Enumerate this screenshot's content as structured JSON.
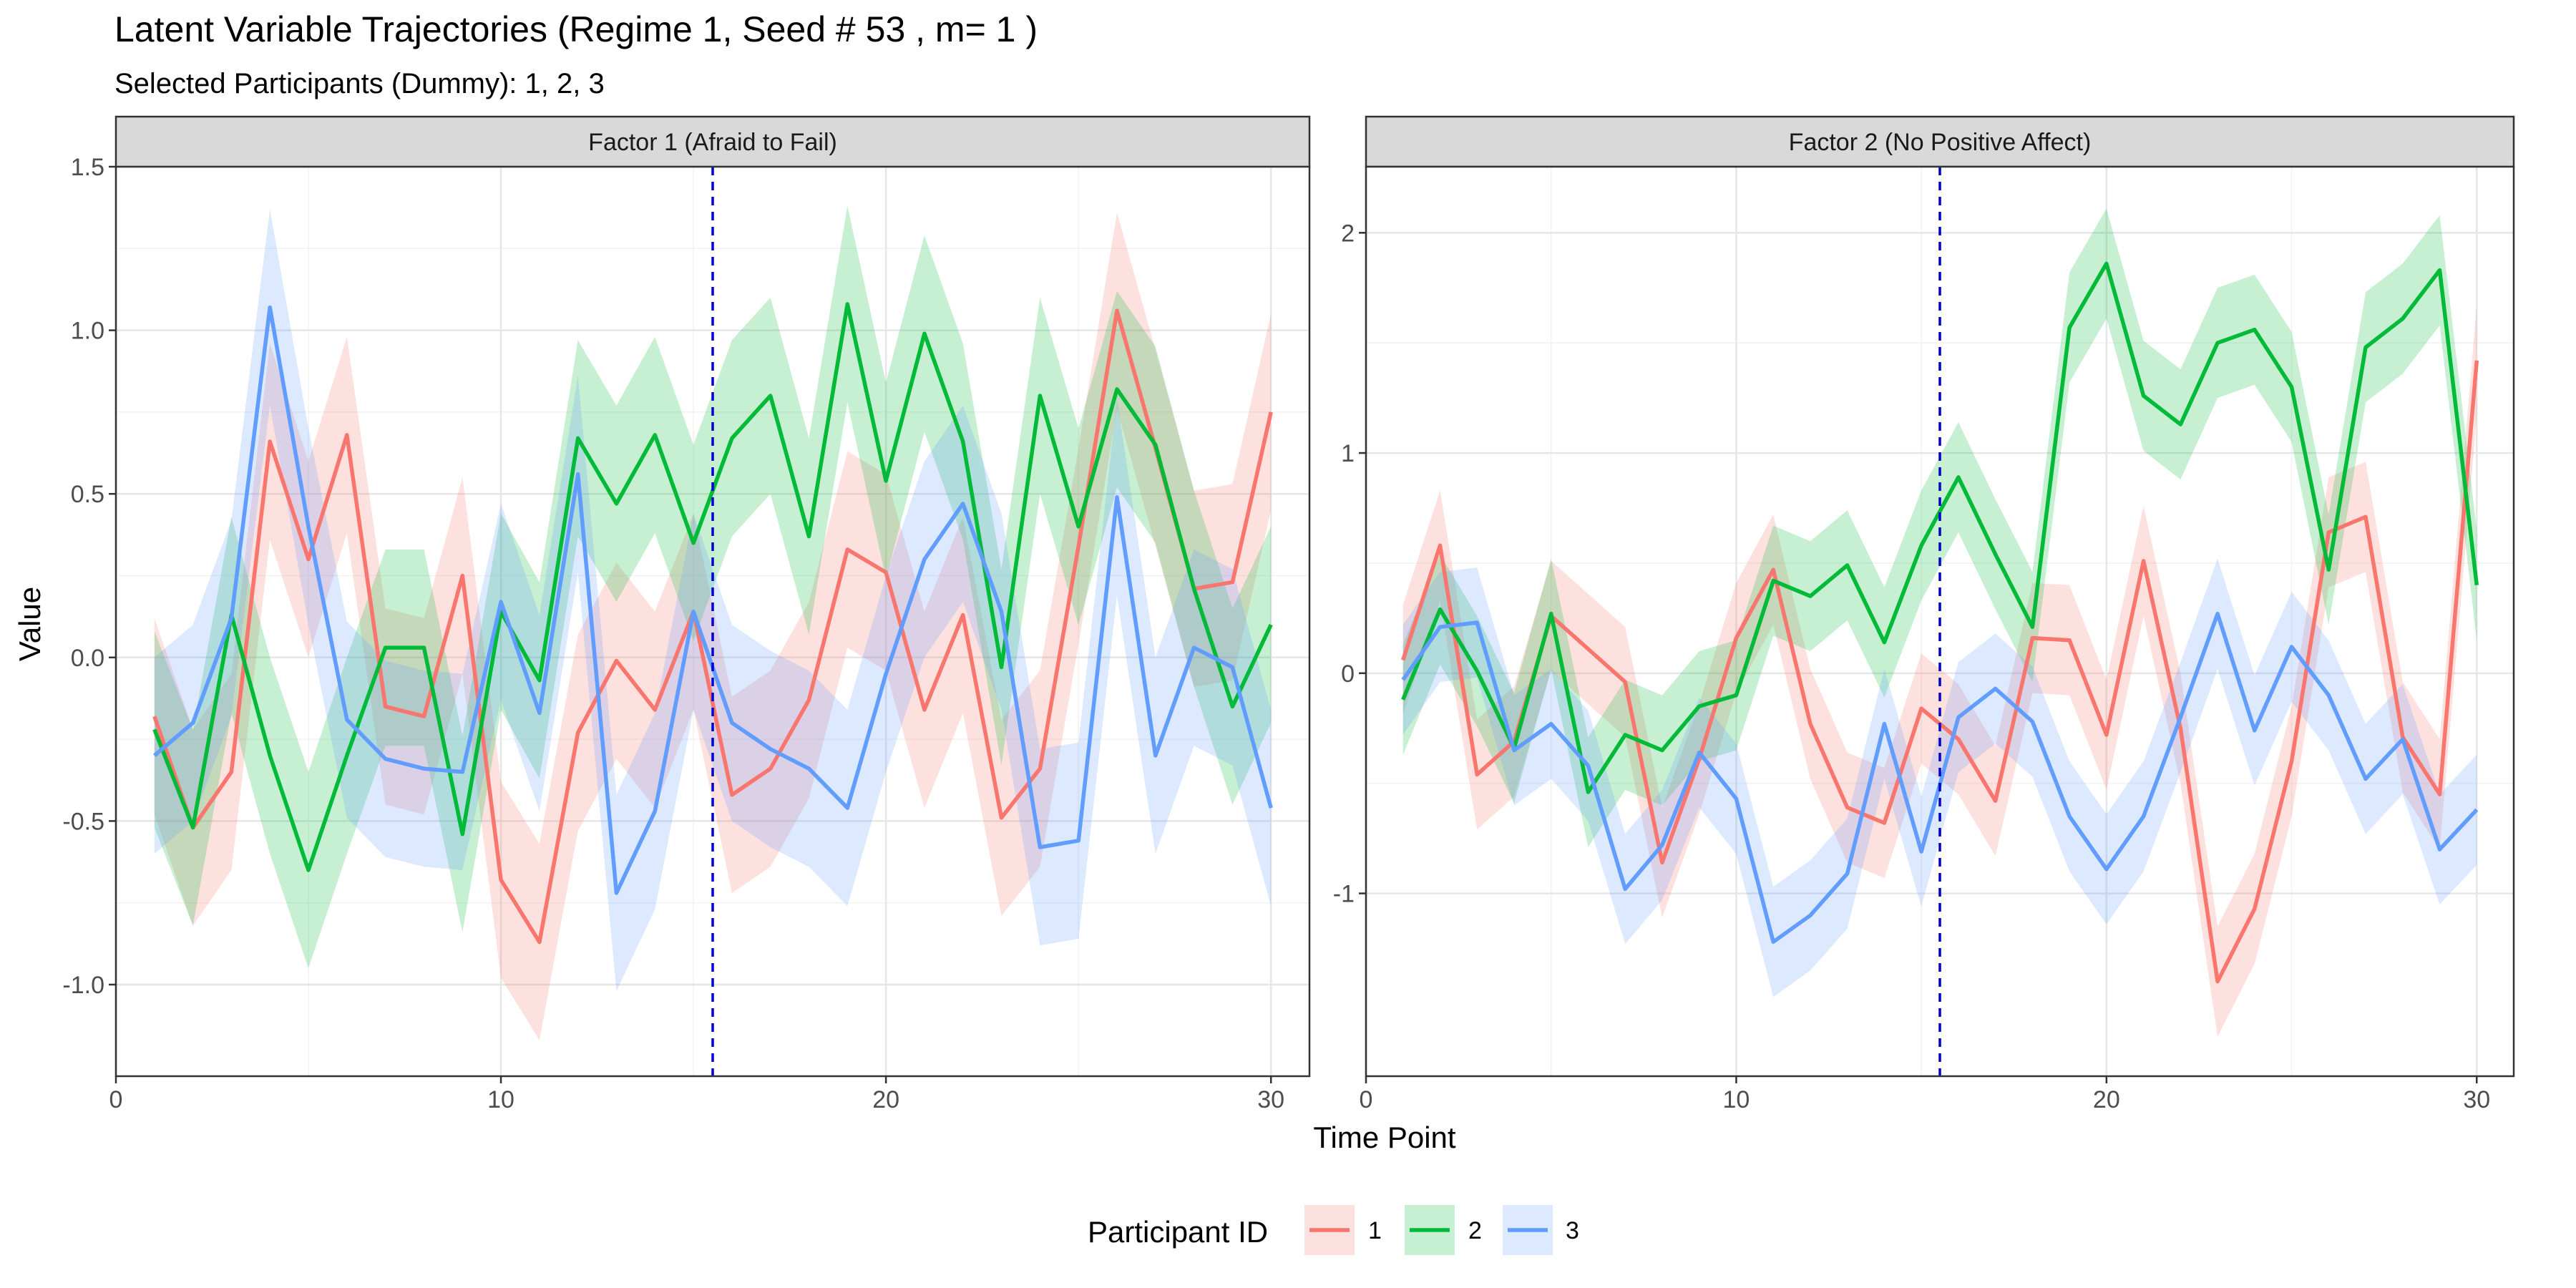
{
  "title": "Latent Variable Trajectories (Regime 1, Seed # 53 , m= 1 )",
  "subtitle": "Selected Participants (Dummy): 1, 2, 3",
  "xlabel": "Time Point",
  "ylabel": "Value",
  "legend": {
    "title": "Participant ID",
    "position": "bottom"
  },
  "colors": {
    "1": "#F8766D",
    "2": "#00BA38",
    "3": "#619CFF",
    "vline": "#0000CC"
  },
  "chart_data": [
    {
      "type": "line",
      "title": "Factor 1 (Afraid to Fail)",
      "xlim": [
        0,
        31
      ],
      "ylim": [
        -1.28,
        1.5
      ],
      "xticks": [
        0,
        10,
        20,
        30
      ],
      "yticks": [
        -1.0,
        -0.5,
        0.0,
        0.5,
        1.0,
        1.5
      ],
      "ytick_labels": [
        "-1.0",
        "-0.5",
        "0.0",
        "0.5",
        "1.0",
        "1.5"
      ],
      "vline": 15.5,
      "band_halfwidth": 0.3,
      "grid": true,
      "x": [
        1,
        2,
        3,
        4,
        5,
        6,
        7,
        8,
        9,
        10,
        11,
        12,
        13,
        14,
        15,
        16,
        17,
        18,
        19,
        20,
        21,
        22,
        23,
        24,
        25,
        26,
        27,
        28,
        29,
        30
      ],
      "series": [
        {
          "name": "1",
          "values": [
            -0.18,
            -0.52,
            -0.35,
            0.66,
            0.3,
            0.68,
            -0.15,
            -0.18,
            0.25,
            -0.68,
            -0.87,
            -0.23,
            -0.01,
            -0.16,
            0.14,
            -0.42,
            -0.34,
            -0.13,
            0.33,
            0.26,
            -0.16,
            0.13,
            -0.49,
            -0.34,
            0.34,
            1.06,
            0.64,
            0.21,
            0.23,
            0.75
          ]
        },
        {
          "name": "2",
          "values": [
            -0.22,
            -0.52,
            0.13,
            -0.3,
            -0.65,
            -0.3,
            0.03,
            0.03,
            -0.54,
            0.14,
            -0.07,
            0.67,
            0.47,
            0.68,
            0.35,
            0.67,
            0.8,
            0.37,
            1.08,
            0.54,
            0.99,
            0.66,
            -0.03,
            0.8,
            0.4,
            0.82,
            0.65,
            0.21,
            -0.15,
            0.1
          ]
        },
        {
          "name": "3",
          "values": [
            -0.3,
            -0.2,
            0.12,
            1.07,
            0.4,
            -0.19,
            -0.31,
            -0.34,
            -0.35,
            0.17,
            -0.17,
            0.56,
            -0.72,
            -0.47,
            0.14,
            -0.2,
            -0.28,
            -0.34,
            -0.46,
            -0.05,
            0.3,
            0.47,
            0.14,
            -0.58,
            -0.56,
            0.49,
            -0.3,
            0.03,
            -0.03,
            -0.46
          ]
        }
      ]
    },
    {
      "type": "line",
      "title": "Factor 2 (No Positive Affect)",
      "xlim": [
        0,
        31
      ],
      "ylim": [
        -1.83,
        2.3
      ],
      "xticks": [
        0,
        10,
        20,
        30
      ],
      "yticks": [
        -1,
        0,
        1,
        2
      ],
      "ytick_labels": [
        "-1",
        "0",
        "1",
        "2"
      ],
      "vline": 15.5,
      "band_halfwidth": 0.25,
      "grid": true,
      "x": [
        1,
        2,
        3,
        4,
        5,
        6,
        7,
        8,
        9,
        10,
        11,
        12,
        13,
        14,
        15,
        16,
        17,
        18,
        19,
        20,
        21,
        22,
        23,
        24,
        25,
        26,
        27,
        28,
        29,
        30
      ],
      "series": [
        {
          "name": "1",
          "values": [
            0.06,
            0.58,
            -0.46,
            -0.31,
            0.26,
            0.11,
            -0.04,
            -0.86,
            -0.39,
            0.16,
            0.47,
            -0.23,
            -0.61,
            -0.68,
            -0.16,
            -0.3,
            -0.58,
            0.16,
            0.15,
            -0.28,
            0.51,
            -0.25,
            -1.4,
            -1.07,
            -0.4,
            0.64,
            0.71,
            -0.29,
            -0.55,
            1.42
          ]
        },
        {
          "name": "2",
          "values": [
            -0.12,
            0.29,
            0.01,
            -0.34,
            0.27,
            -0.54,
            -0.28,
            -0.35,
            -0.15,
            -0.1,
            0.42,
            0.35,
            0.49,
            0.14,
            0.58,
            0.89,
            0.54,
            0.21,
            1.57,
            1.86,
            1.26,
            1.13,
            1.5,
            1.56,
            1.3,
            0.47,
            1.48,
            1.61,
            1.83,
            0.4
          ]
        },
        {
          "name": "3",
          "values": [
            -0.03,
            0.21,
            0.23,
            -0.35,
            -0.23,
            -0.42,
            -0.98,
            -0.78,
            -0.36,
            -0.57,
            -1.22,
            -1.1,
            -0.91,
            -0.23,
            -0.81,
            -0.2,
            -0.07,
            -0.22,
            -0.65,
            -0.89,
            -0.65,
            -0.2,
            0.27,
            -0.26,
            0.12,
            -0.1,
            -0.48,
            -0.3,
            -0.8,
            -0.62
          ]
        }
      ]
    }
  ]
}
